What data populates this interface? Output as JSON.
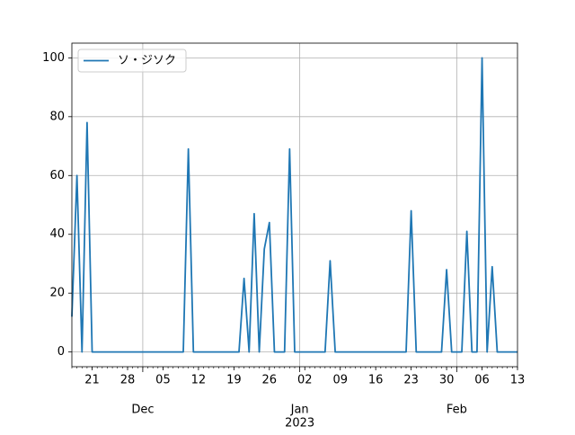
{
  "chart_data": {
    "type": "line",
    "x": [
      "2022-11-17",
      "2022-11-18",
      "2022-11-19",
      "2022-11-20",
      "2022-11-21",
      "2022-11-22",
      "2022-11-23",
      "2022-11-24",
      "2022-11-25",
      "2022-11-26",
      "2022-11-27",
      "2022-11-28",
      "2022-11-29",
      "2022-11-30",
      "2022-12-01",
      "2022-12-02",
      "2022-12-03",
      "2022-12-04",
      "2022-12-05",
      "2022-12-06",
      "2022-12-07",
      "2022-12-08",
      "2022-12-09",
      "2022-12-10",
      "2022-12-11",
      "2022-12-12",
      "2022-12-13",
      "2022-12-14",
      "2022-12-15",
      "2022-12-16",
      "2022-12-17",
      "2022-12-18",
      "2022-12-19",
      "2022-12-20",
      "2022-12-21",
      "2022-12-22",
      "2022-12-23",
      "2022-12-24",
      "2022-12-25",
      "2022-12-26",
      "2022-12-27",
      "2022-12-28",
      "2022-12-29",
      "2022-12-30",
      "2022-12-31",
      "2023-01-01",
      "2023-01-02",
      "2023-01-03",
      "2023-01-04",
      "2023-01-05",
      "2023-01-06",
      "2023-01-07",
      "2023-01-08",
      "2023-01-09",
      "2023-01-10",
      "2023-01-11",
      "2023-01-12",
      "2023-01-13",
      "2023-01-14",
      "2023-01-15",
      "2023-01-16",
      "2023-01-17",
      "2023-01-18",
      "2023-01-19",
      "2023-01-20",
      "2023-01-21",
      "2023-01-22",
      "2023-01-23",
      "2023-01-24",
      "2023-01-25",
      "2023-01-26",
      "2023-01-27",
      "2023-01-28",
      "2023-01-29",
      "2023-01-30",
      "2023-01-31",
      "2023-02-01",
      "2023-02-02",
      "2023-02-03",
      "2023-02-04",
      "2023-02-05",
      "2023-02-06",
      "2023-02-07",
      "2023-02-08",
      "2023-02-09",
      "2023-02-10",
      "2023-02-11",
      "2023-02-12",
      "2023-02-13"
    ],
    "series": [
      {
        "name": "ソ・ジソク",
        "color": "#1f77b4",
        "values": [
          12,
          60,
          0,
          78,
          0,
          0,
          0,
          0,
          0,
          0,
          0,
          0,
          0,
          0,
          0,
          0,
          0,
          0,
          0,
          0,
          0,
          0,
          0,
          69,
          0,
          0,
          0,
          0,
          0,
          0,
          0,
          0,
          0,
          0,
          25,
          0,
          47,
          0,
          35,
          44,
          0,
          0,
          0,
          69,
          0,
          0,
          0,
          0,
          0,
          0,
          0,
          31,
          0,
          0,
          0,
          0,
          0,
          0,
          0,
          0,
          0,
          0,
          0,
          0,
          0,
          0,
          0,
          48,
          0,
          0,
          0,
          0,
          0,
          0,
          28,
          0,
          0,
          0,
          41,
          0,
          0,
          100,
          0,
          29,
          0,
          0,
          0,
          0,
          0
        ]
      }
    ],
    "xlim": [
      "2022-11-17",
      "2023-02-13"
    ],
    "xticks": [
      {
        "value": "2022-11-21",
        "label": "21"
      },
      {
        "value": "2022-11-28",
        "label": "28"
      },
      {
        "value": "2022-12-05",
        "label": "05"
      },
      {
        "value": "2022-12-12",
        "label": "12"
      },
      {
        "value": "2022-12-19",
        "label": "19"
      },
      {
        "value": "2022-12-26",
        "label": "26"
      },
      {
        "value": "2023-01-02",
        "label": "02"
      },
      {
        "value": "2023-01-09",
        "label": "09"
      },
      {
        "value": "2023-01-16",
        "label": "16"
      },
      {
        "value": "2023-01-23",
        "label": "23"
      },
      {
        "value": "2023-01-30",
        "label": "30"
      },
      {
        "value": "2023-02-06",
        "label": "06"
      },
      {
        "value": "2023-02-13",
        "label": "13"
      }
    ],
    "month_ticks": [
      {
        "value": "2022-12-01",
        "label": "Dec"
      },
      {
        "value": "2023-01-01",
        "label": "Jan"
      },
      {
        "value": "2023-02-01",
        "label": "Feb"
      }
    ],
    "year_label": "2023",
    "ylim": [
      -5,
      105
    ],
    "yticks": [
      0,
      20,
      40,
      60,
      80,
      100
    ],
    "grid": true,
    "legend": "upper left"
  }
}
